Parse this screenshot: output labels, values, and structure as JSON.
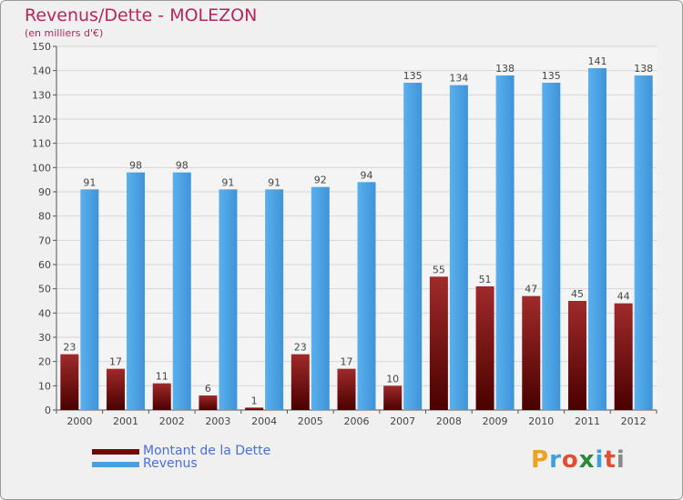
{
  "header": {
    "title": "Revenus/Dette - MOLEZON",
    "subtitle": "(en milliers d'€)"
  },
  "chart_data": {
    "type": "bar",
    "categories": [
      "2000",
      "2001",
      "2002",
      "2003",
      "2004",
      "2005",
      "2006",
      "2007",
      "2008",
      "2009",
      "2010",
      "2011",
      "2012"
    ],
    "series": [
      {
        "name": "Montant de la Dette",
        "values": [
          23,
          17,
          11,
          6,
          1,
          23,
          17,
          10,
          55,
          51,
          47,
          45,
          44
        ],
        "color": "#8b1a1a"
      },
      {
        "name": "Revenus",
        "values": [
          91,
          98,
          98,
          91,
          91,
          92,
          94,
          135,
          134,
          138,
          135,
          141,
          138
        ],
        "color": "#4a9fe0"
      }
    ],
    "yticks": [
      0,
      10,
      20,
      30,
      40,
      50,
      60,
      70,
      80,
      90,
      100,
      110,
      120,
      130,
      140,
      150
    ],
    "ylim": [
      0,
      150
    ],
    "grid": true,
    "legend_position": "bottom-left"
  },
  "legend": [
    {
      "label": "Montant de la Dette",
      "color": "#6e0a0a"
    },
    {
      "label": "Revenus",
      "color": "#4a9fe0"
    }
  ],
  "logo": {
    "letters": [
      "P",
      "r",
      "o",
      "x",
      "i",
      "t",
      "i"
    ],
    "colors": [
      "#f0a020",
      "#3aa0e0",
      "#e05030",
      "#2a8a3a",
      "#3aa0e0",
      "#e05030",
      "#8a8a8a"
    ]
  }
}
